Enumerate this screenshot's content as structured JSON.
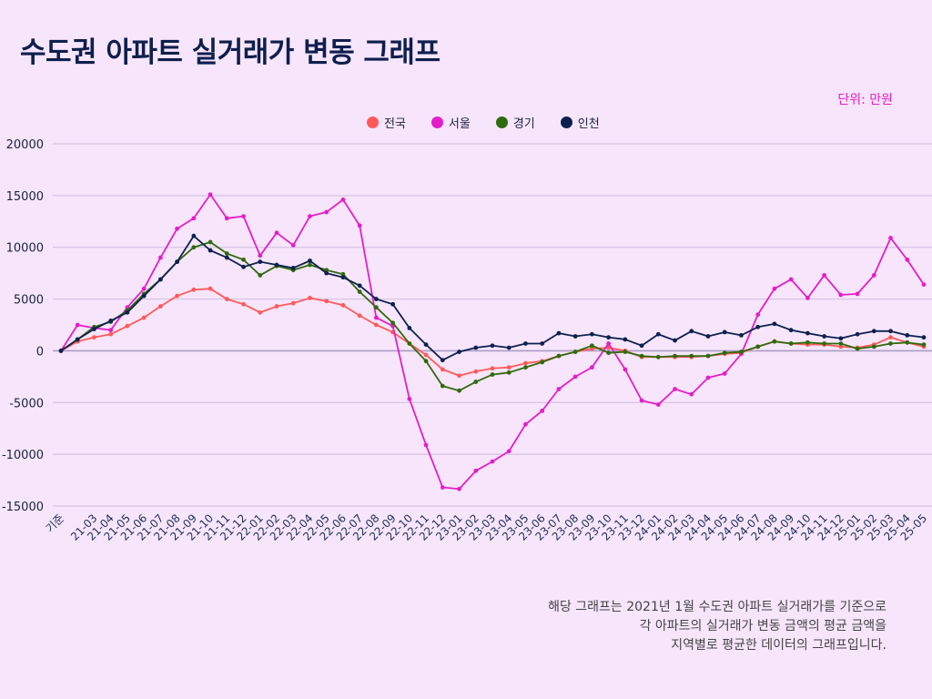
{
  "title": "수도권 아파트 실거래가 변동 그래프",
  "unit_label": "단위: 만원",
  "footnote": [
    "해당 그래프는 2021년 1월 수도권 아파트 실거래가를 기준으로",
    "각 아파트의 실거래가 변동 금액의 평균 금액을",
    "지역별로 평균한 데이터의 그래프입니다."
  ],
  "chart_data": {
    "type": "line",
    "title": "수도권 아파트 실거래가 변동 그래프",
    "xlabel": "",
    "ylabel": "",
    "ylim": [
      -15000,
      20000
    ],
    "yticks": [
      20000,
      15000,
      10000,
      5000,
      0,
      -5000,
      -10000,
      -15000
    ],
    "grid": true,
    "legend_position": "top-center",
    "categories": [
      "기준",
      "",
      "21-03",
      "21-04",
      "21-05",
      "21-06",
      "21-07",
      "21-08",
      "21-09",
      "21-10",
      "21-11",
      "21-12",
      "22-01",
      "22-02",
      "22-03",
      "22-04",
      "22-05",
      "22-06",
      "22-07",
      "22-08",
      "22-09",
      "22-10",
      "22-11",
      "22-12",
      "23-01",
      "23-02",
      "23-03",
      "23-04",
      "23-05",
      "23-06",
      "23-07",
      "23-08",
      "23-09",
      "23-10",
      "23-11",
      "23-12",
      "24-01",
      "24-02",
      "24-03",
      "24-04",
      "24-05",
      "24-06",
      "24-07",
      "24-08",
      "24-09",
      "24-10",
      "24-11",
      "24-12",
      "25-01",
      "25-02",
      "25-03",
      "25-04",
      "25-05"
    ],
    "series": [
      {
        "name": "전국",
        "color": "#ff5a5a",
        "values": [
          0,
          900,
          1300,
          1600,
          2400,
          3200,
          4300,
          5300,
          5900,
          6000,
          5000,
          4500,
          3700,
          4300,
          4600,
          5100,
          4800,
          4400,
          3400,
          2500,
          1800,
          700,
          -400,
          -1800,
          -2400,
          -2000,
          -1700,
          -1600,
          -1200,
          -1000,
          -500,
          -100,
          200,
          300,
          0,
          -600,
          -600,
          -600,
          -600,
          -500,
          -300,
          -200,
          400,
          900,
          700,
          600,
          600,
          400,
          300,
          600,
          1300,
          800,
          400
        ]
      },
      {
        "name": "서울",
        "color": "#e31ec8",
        "values": [
          0,
          2500,
          2200,
          2000,
          4200,
          6000,
          9000,
          11800,
          12800,
          15100,
          12800,
          13000,
          9200,
          11400,
          10200,
          13000,
          13400,
          14600,
          12100,
          3200,
          2400,
          -4650,
          -9100,
          -13200,
          -13350,
          -11600,
          -10700,
          -9700,
          -7100,
          -5800,
          -3700,
          -2500,
          -1600,
          700,
          -1800,
          -4800,
          -5200,
          -3700,
          -4200,
          -2600,
          -2200,
          -300,
          3500,
          6000,
          6900,
          5100,
          7300,
          5400,
          5500,
          7300,
          10900,
          8800,
          6400
        ]
      },
      {
        "name": "경기",
        "color": "#2e6b0c",
        "values": [
          0,
          1100,
          2300,
          2800,
          3900,
          5500,
          6900,
          8600,
          10000,
          10500,
          9400,
          8800,
          7300,
          8200,
          7800,
          8300,
          7800,
          7400,
          5700,
          4200,
          2700,
          700,
          -1000,
          -3400,
          -3850,
          -3000,
          -2300,
          -2100,
          -1600,
          -1100,
          -500,
          -100,
          500,
          -200,
          -100,
          -500,
          -600,
          -500,
          -500,
          -500,
          -200,
          -100,
          400,
          900,
          700,
          800,
          700,
          700,
          200,
          400,
          700,
          800,
          600
        ]
      },
      {
        "name": "인천",
        "color": "#0d2150",
        "values": [
          0,
          1100,
          2100,
          2900,
          3700,
          5300,
          6900,
          8600,
          11100,
          9700,
          9000,
          8100,
          8600,
          8300,
          8000,
          8700,
          7500,
          7100,
          6300,
          5000,
          4500,
          2200,
          600,
          -900,
          -100,
          300,
          500,
          300,
          700,
          700,
          1700,
          1400,
          1600,
          1300,
          1100,
          500,
          1600,
          1000,
          1900,
          1400,
          1800,
          1500,
          2300,
          2600,
          2000,
          1700,
          1400,
          1200,
          1600,
          1900,
          1900,
          1500,
          1300
        ]
      }
    ]
  }
}
